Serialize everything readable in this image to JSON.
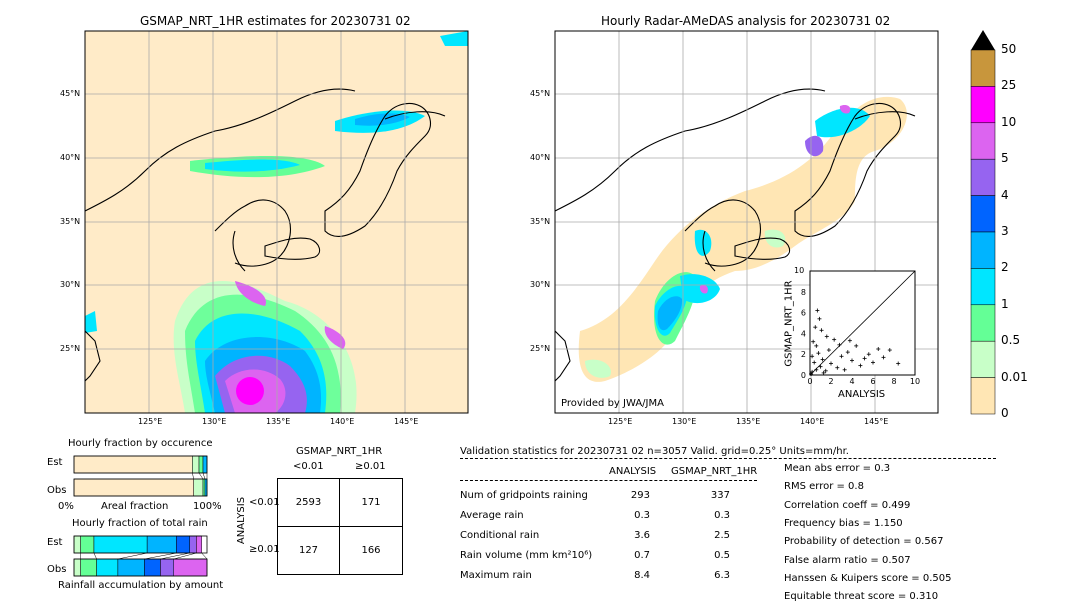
{
  "maps": {
    "left_title": "GSMAP_NRT_1HR estimates for 20230731 02",
    "right_title": "Hourly Radar-AMeDAS analysis for 20230731 02",
    "lon_ticks": [
      "125°E",
      "130°E",
      "135°E",
      "140°E",
      "145°E"
    ],
    "lat_ticks": [
      "45°N",
      "40°N",
      "35°N",
      "30°N",
      "25°N"
    ],
    "credit": "Provided by JWA/JMA"
  },
  "colorbar": {
    "labels": [
      "50",
      "25",
      "10",
      "5",
      "4",
      "3",
      "2",
      "1",
      "0.5",
      "0.01",
      "0"
    ],
    "colors": [
      "#c8963c",
      "#ff00ff",
      "#dc64f0",
      "#9664f0",
      "#0064ff",
      "#00b4ff",
      "#00e6ff",
      "#64ff96",
      "#c8ffc8",
      "#ffe6b4",
      "#ffebc8"
    ]
  },
  "scatter": {
    "ylabel": "GSMAP_NRT_1HR",
    "xlabel": "ANALYSIS",
    "ticks": [
      "0",
      "2",
      "4",
      "6",
      "8",
      "10"
    ],
    "top_tick": "10"
  },
  "fraction": {
    "occ_title": "Hourly fraction by occurence",
    "amt_title": "Hourly fraction of total rain",
    "est": "Est",
    "obs": "Obs",
    "zero": "0%",
    "mid": "Areal fraction",
    "hundred": "100%",
    "footer": "Rainfall accumulation by amount"
  },
  "contingency": {
    "title": "GSMAP_NRT_1HR",
    "col1": "<0.01",
    "col2": "≥0.01",
    "side": "ANALYSIS",
    "row1": "<0.01",
    "row2": "≥0.01",
    "cells": [
      "2593",
      "171",
      "127",
      "166"
    ]
  },
  "validation": {
    "header": "Validation statistics for 20230731 02  n=3057 Valid. grid=0.25° Units=mm/hr.",
    "col_a": "ANALYSIS",
    "col_b": "GSMAP_NRT_1HR",
    "rows": [
      {
        "label": "Num of gridpoints raining",
        "a": "293",
        "b": "337"
      },
      {
        "label": "Average rain",
        "a": "0.3",
        "b": "0.3"
      },
      {
        "label": "Conditional rain",
        "a": "3.6",
        "b": "2.5"
      },
      {
        "label": "Rain volume (mm km²10⁶)",
        "a": "0.7",
        "b": "0.5"
      },
      {
        "label": "Maximum rain",
        "a": "8.4",
        "b": "6.3"
      }
    ],
    "scores": [
      "Mean abs error =    0.3",
      "RMS error =    0.8",
      "Correlation coeff =  0.499",
      "Frequency bias =  1.150",
      "Probability of detection =  0.567",
      "False alarm ratio =  0.507",
      "Hanssen & Kuipers score =  0.505",
      "Equitable threat score =  0.310"
    ]
  },
  "chart_data": [
    {
      "type": "heatmap",
      "title": "GSMAP_NRT_1HR estimates for 20230731 02",
      "xlim": [
        120,
        150
      ],
      "ylim": [
        20,
        50
      ],
      "units": "mm/hr"
    },
    {
      "type": "heatmap",
      "title": "Hourly Radar-AMeDAS analysis for 20230731 02",
      "xlim": [
        120,
        150
      ],
      "ylim": [
        20,
        50
      ],
      "units": "mm/hr"
    },
    {
      "type": "scatter",
      "xlabel": "ANALYSIS",
      "ylabel": "GSMAP_NRT_1HR",
      "xlim": [
        0,
        10
      ],
      "ylim": [
        0,
        10
      ],
      "points": [
        [
          0.2,
          0.3
        ],
        [
          0.4,
          1.2
        ],
        [
          0.6,
          0.5
        ],
        [
          0.8,
          2.1
        ],
        [
          1.0,
          0.8
        ],
        [
          1.2,
          1.5
        ],
        [
          0.3,
          3.2
        ],
        [
          0.5,
          4.6
        ],
        [
          0.7,
          6.2
        ],
        [
          1.5,
          0.4
        ],
        [
          1.8,
          2.4
        ],
        [
          2.0,
          1.1
        ],
        [
          2.3,
          3.4
        ],
        [
          2.6,
          0.7
        ],
        [
          3.0,
          1.8
        ],
        [
          3.3,
          0.5
        ],
        [
          3.6,
          2.2
        ],
        [
          4.0,
          1.4
        ],
        [
          4.4,
          2.8
        ],
        [
          4.8,
          0.9
        ],
        [
          5.2,
          1.6
        ],
        [
          5.6,
          2.0
        ],
        [
          6.0,
          1.2
        ],
        [
          6.5,
          2.5
        ],
        [
          7.0,
          1.7
        ],
        [
          7.6,
          2.4
        ],
        [
          8.4,
          1.1
        ],
        [
          1.1,
          4.3
        ],
        [
          1.6,
          3.7
        ],
        [
          0.9,
          5.4
        ],
        [
          2.8,
          2.9
        ],
        [
          3.8,
          3.3
        ],
        [
          0.1,
          0.1
        ],
        [
          0.2,
          1.8
        ],
        [
          1.3,
          0.2
        ],
        [
          0.6,
          2.8
        ]
      ]
    },
    {
      "type": "bar",
      "title": "Hourly fraction by occurence",
      "categories": [
        "Est",
        "Obs"
      ],
      "series": [
        {
          "name": "<0.01",
          "values": [
            0.89,
            0.9
          ]
        },
        {
          "name": "0.01-0.5",
          "values": [
            0.05,
            0.07
          ]
        },
        {
          "name": "0.5-1",
          "values": [
            0.03,
            0.015
          ]
        },
        {
          "name": ">1",
          "values": [
            0.03,
            0.015
          ]
        }
      ]
    },
    {
      "type": "bar",
      "title": "Hourly fraction of total rain",
      "categories": [
        "Est",
        "Obs"
      ],
      "series": [
        {
          "name": "0.01-0.5",
          "values": [
            0.05,
            0.05
          ]
        },
        {
          "name": "0.5-1",
          "values": [
            0.1,
            0.12
          ]
        },
        {
          "name": "1-2",
          "values": [
            0.4,
            0.16
          ]
        },
        {
          "name": "2-3",
          "values": [
            0.22,
            0.2
          ]
        },
        {
          "name": "3-4",
          "values": [
            0.1,
            0.12
          ]
        },
        {
          "name": "4-5",
          "values": [
            0.05,
            0.1
          ]
        },
        {
          "name": "5-10",
          "values": [
            0.04,
            0.25
          ]
        }
      ]
    }
  ]
}
